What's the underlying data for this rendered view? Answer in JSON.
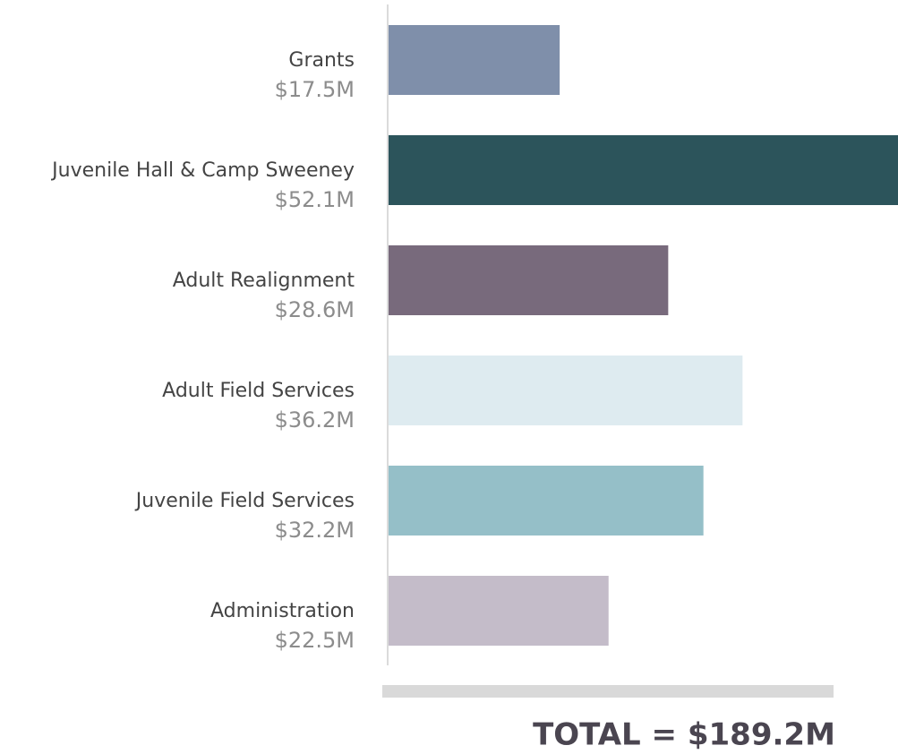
{
  "chart_data": {
    "type": "bar",
    "orientation": "horizontal",
    "categories": [
      "Grants",
      "Juvenile Hall & Camp Sweeney",
      "Adult Realignment",
      "Adult Field Services",
      "Juvenile Field Services",
      "Administration"
    ],
    "values": [
      17.5,
      52.1,
      28.6,
      36.2,
      32.2,
      22.5
    ],
    "value_labels": [
      "$17.5M",
      "$52.1M",
      "$28.6M",
      "$36.2M",
      "$32.2M",
      "$22.5M"
    ],
    "colors": [
      "#7f8faa",
      "#2c545b",
      "#786a7c",
      "#deebf0",
      "#95bfc8",
      "#c4bcc9"
    ],
    "total_label": "TOTAL = $189.2M"
  }
}
